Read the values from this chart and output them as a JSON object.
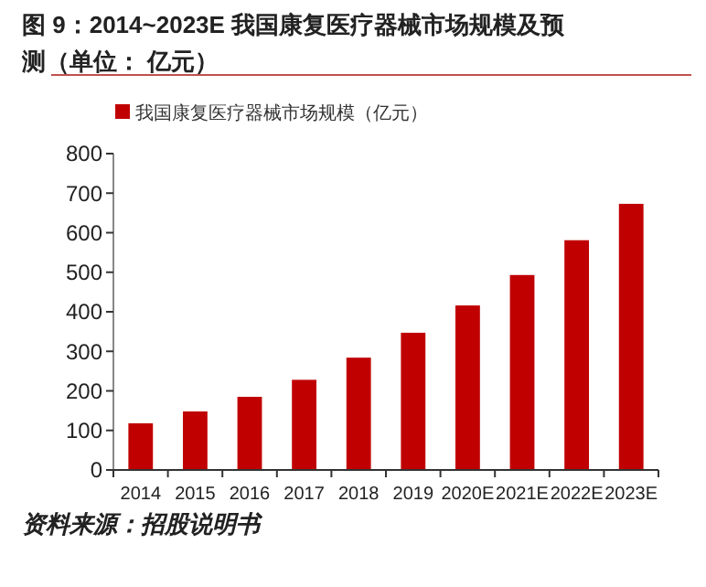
{
  "chart_data": {
    "type": "bar",
    "title": "图 9：2014~2023E 我国康复医疗器械市场规模及预测（单位： 亿元）",
    "categories": [
      "2014",
      "2015",
      "2016",
      "2017",
      "2018",
      "2019",
      "2020E",
      "2021E",
      "2022E",
      "2023E"
    ],
    "series": [
      {
        "name": "我国康复医疗器械市场规模（亿元）",
        "color": "#c00000",
        "values": [
          118,
          148,
          185,
          228,
          284,
          347,
          416,
          493,
          581,
          673
        ]
      }
    ],
    "ylim": [
      0,
      800
    ],
    "yticks": [
      0,
      100,
      200,
      300,
      400,
      500,
      600,
      700,
      800
    ],
    "legend": "top",
    "grid": false,
    "annotations": [
      "资料来源：招股说明书"
    ]
  }
}
